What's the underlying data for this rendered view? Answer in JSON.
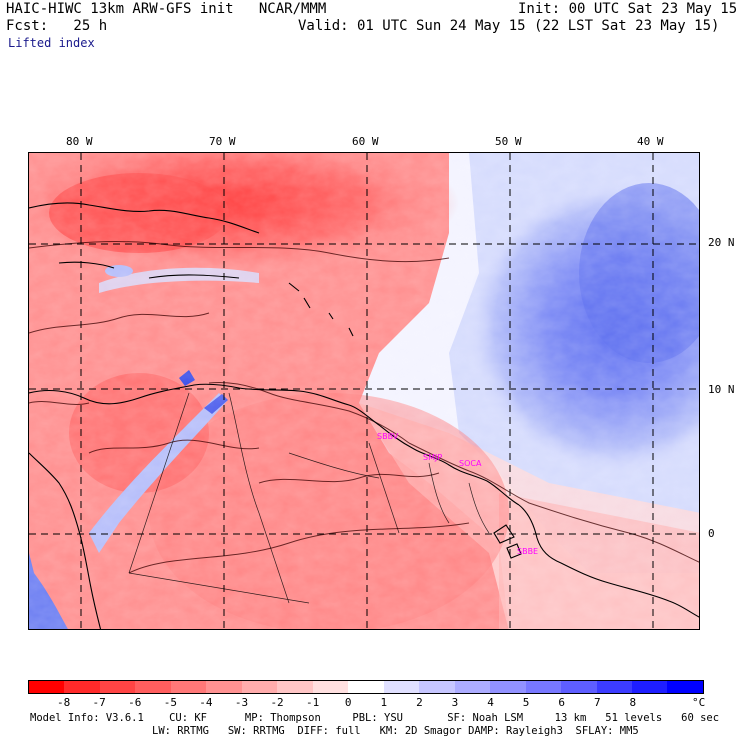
{
  "header": {
    "left1": "HAIC-HIWC 13km ARW-GFS init   NCAR/MMM",
    "left2": "Fcst:   25 h",
    "left3": "Lifted index",
    "right1": "Init: 00 UTC Sat 23 May 15",
    "right2": "Valid: 01 UTC Sun 24 May 15 (22 LST Sat 23 May 15)"
  },
  "axes": {
    "lon_labels": [
      "80 W",
      "70 W",
      "60 W",
      "50 W",
      "40 W"
    ],
    "lat_labels": [
      "20 N",
      "10 N",
      "0"
    ]
  },
  "stations": [
    "SBBV",
    "SMJP",
    "SOCA",
    "SBBE"
  ],
  "colorbar": {
    "ticks": [
      "-8",
      "-7",
      "-6",
      "-5",
      "-4",
      "-3",
      "-2",
      "-1",
      "0",
      "1",
      "2",
      "3",
      "4",
      "5",
      "6",
      "7",
      "8"
    ],
    "unit": "°C",
    "colors": [
      "#ff0000",
      "#ff2a2a",
      "#ff4444",
      "#ff5e5e",
      "#ff7878",
      "#ff9292",
      "#ffacac",
      "#ffc6c6",
      "#ffe0e0",
      "#ffffff",
      "#e0e0ff",
      "#c6c6ff",
      "#acacff",
      "#9292ff",
      "#7878ff",
      "#5e5eff",
      "#3c3cff",
      "#1e1eff",
      "#0000ff"
    ]
  },
  "footer": {
    "line1": "Model Info: V3.6.1    CU: KF      MP: Thompson     PBL: YSU       SF: Noah LSM     13 km   51 levels   60 sec",
    "line2": "LW: RRTMG   SW: RRTMG  DIFF: full   KM: 2D Smagor DAMP: Rayleigh3  SFLAY: MM5"
  }
}
